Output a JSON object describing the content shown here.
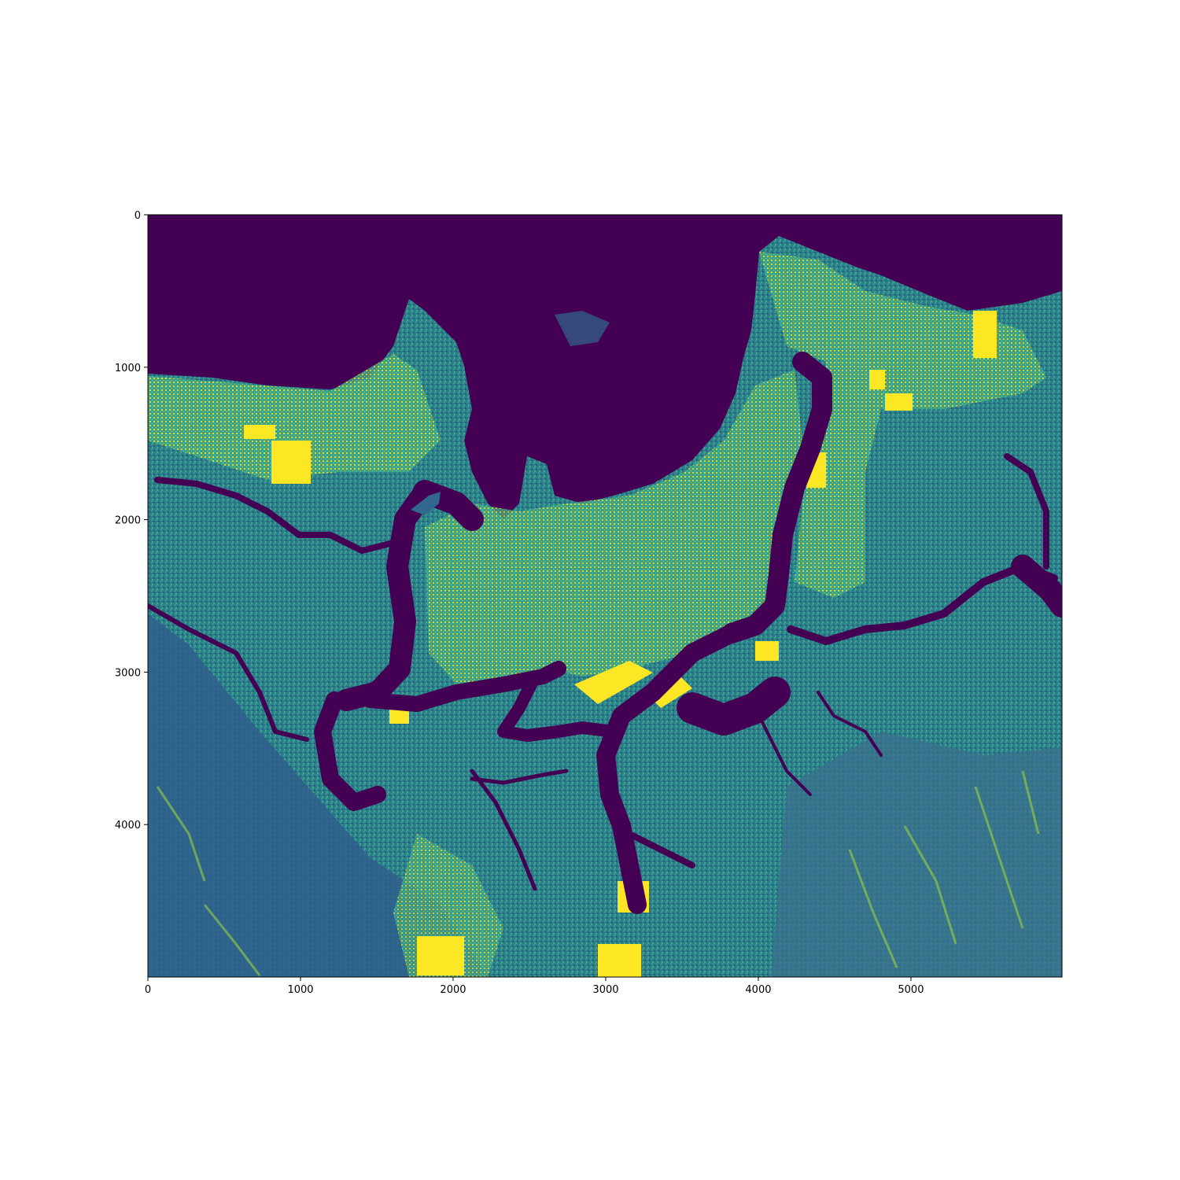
{
  "chart_data": {
    "type": "heatmap",
    "title": "",
    "xlabel": "",
    "ylabel": "",
    "colormap": "viridis",
    "image_content": "SAR backscatter intensity image of a coastal city with river channels",
    "xlim": [
      0,
      5990
    ],
    "ylim": [
      5000,
      0
    ],
    "x_ticks": [
      0,
      1000,
      2000,
      3000,
      4000,
      5000
    ],
    "y_ticks": [
      0,
      1000,
      2000,
      3000,
      4000
    ],
    "x_tick_labels": [
      "0",
      "1000",
      "2000",
      "3000",
      "4000",
      "5000"
    ],
    "y_tick_labels": [
      "0",
      "1000",
      "2000",
      "3000",
      "4000"
    ],
    "colors": {
      "viridis_low": "#440154",
      "viridis_mid_low": "#31688e",
      "viridis_mid": "#35b779",
      "viridis_high": "#fde725",
      "land_base": "#2a7b8e"
    }
  }
}
